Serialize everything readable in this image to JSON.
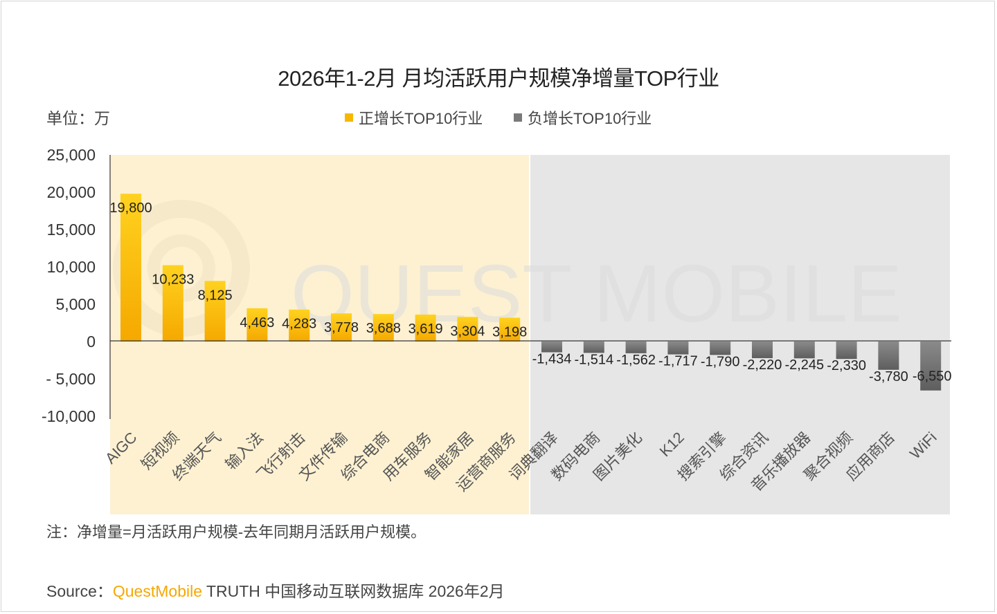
{
  "title": "2026年1-2月 月均活跃用户规模净增量TOP行业",
  "unit_label": "单位：万",
  "legend": [
    {
      "label": "正增长TOP10行业",
      "color": "#f5b800"
    },
    {
      "label": "负增长TOP10行业",
      "color": "#7a7a7a"
    }
  ],
  "watermark": "QUEST MOBILE",
  "note": "注：净增量=月活跃用户规模-去年同期月活跃用户规模。",
  "source": {
    "prefix": "Source：",
    "brand": "QuestMobile",
    "rest": " TRUTH 中国移动互联网数据库 2026年2月"
  },
  "chart_data": {
    "type": "bar",
    "ylim": [
      -10000,
      25000
    ],
    "yticks": [
      {
        "value": 25000,
        "label": "25,000"
      },
      {
        "value": 20000,
        "label": "20,000"
      },
      {
        "value": 15000,
        "label": "15,000"
      },
      {
        "value": 10000,
        "label": "10,000"
      },
      {
        "value": 5000,
        "label": "5,000"
      },
      {
        "value": 0,
        "label": "0"
      },
      {
        "value": -5000,
        "label": "- 5,000"
      },
      {
        "value": -10000,
        "label": "-10,000"
      }
    ],
    "series": [
      {
        "name": "正增长TOP10行业",
        "color": "#f5b800",
        "categories": [
          "AIGC",
          "短视频",
          "终端天气",
          "输入法",
          "飞行射击",
          "文件传输",
          "综合电商",
          "用车服务",
          "智能家居",
          "运营商服务"
        ],
        "values": [
          19800,
          10233,
          8125,
          4463,
          4283,
          3778,
          3688,
          3619,
          3304,
          3198
        ],
        "labels": [
          "19,800",
          "10,233",
          "8,125",
          "4,463",
          "4,283",
          "3,778",
          "3,688",
          "3,619",
          "3,304",
          "3,198"
        ]
      },
      {
        "name": "负增长TOP10行业",
        "color": "#7a7a7a",
        "categories": [
          "词典翻译",
          "数码电商",
          "图片美化",
          "K12",
          "搜索引擎",
          "综合资讯",
          "音乐播放器",
          "聚合视频",
          "应用商店",
          "WiFi"
        ],
        "values": [
          -1434,
          -1514,
          -1562,
          -1717,
          -1790,
          -2220,
          -2245,
          -2330,
          -3780,
          -6550
        ],
        "labels": [
          "-1,434",
          "-1,514",
          "-1,562",
          "-1,717",
          "-1,790",
          "-2,220",
          "-2,245",
          "-2,330",
          "-3,780",
          "-6,550"
        ]
      }
    ]
  }
}
